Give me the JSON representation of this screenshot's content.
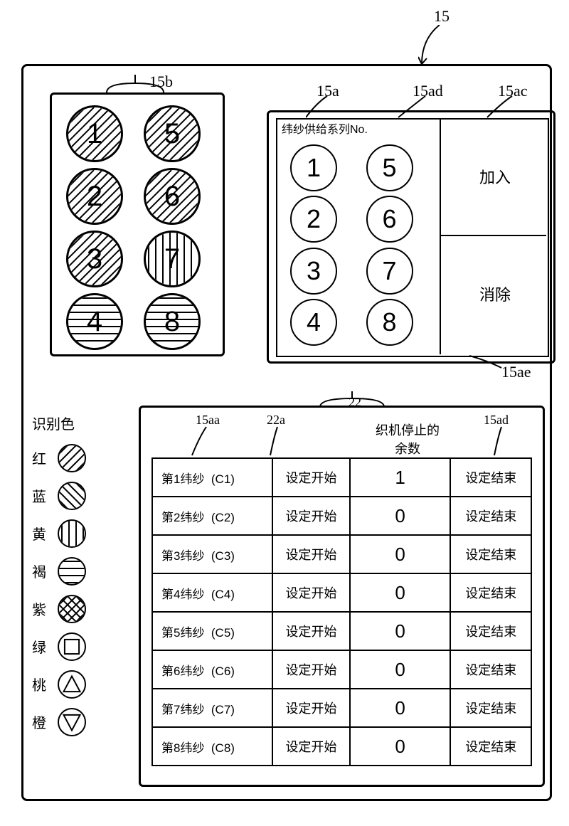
{
  "refs": {
    "r15": "15",
    "r15b": "15b",
    "r15a": "15a",
    "r15ad_top": "15ad",
    "r15ac": "15ac",
    "r15ae": "15ae",
    "r22": "22",
    "r15aa": "15aa",
    "r22a": "22a",
    "r15ad_right": "15ad"
  },
  "panel15a": {
    "title": "纬纱供给系列No.",
    "add": "加入",
    "del": "消除",
    "nums": [
      "1",
      "5",
      "2",
      "6",
      "3",
      "7",
      "4",
      "8"
    ]
  },
  "panel15b": {
    "nums": [
      "1",
      "5",
      "2",
      "6",
      "3",
      "7",
      "4",
      "8"
    ],
    "hatch": [
      "diag45",
      "diag45",
      "diag45",
      "diag45",
      "diag45",
      "vert",
      "horiz",
      "horiz"
    ]
  },
  "table": {
    "title": "织机停止的\n余数",
    "cols": {
      "start": "设定开始",
      "end": "设定结束"
    },
    "rows": [
      {
        "name": "第1纬纱",
        "code": "(C1)",
        "val": "1"
      },
      {
        "name": "第2纬纱",
        "code": "(C2)",
        "val": "0"
      },
      {
        "name": "第3纬纱",
        "code": "(C3)",
        "val": "0"
      },
      {
        "name": "第4纬纱",
        "code": "(C4)",
        "val": "0"
      },
      {
        "name": "第5纬纱",
        "code": "(C5)",
        "val": "0"
      },
      {
        "name": "第6纬纱",
        "code": "(C6)",
        "val": "0"
      },
      {
        "name": "第7纬纱",
        "code": "(C7)",
        "val": "0"
      },
      {
        "name": "第8纬纱",
        "code": "(C8)",
        "val": "0"
      }
    ]
  },
  "legend": {
    "title": "识别色",
    "items": [
      {
        "label": "红",
        "icon": "diag45"
      },
      {
        "label": "蓝",
        "icon": "diag135"
      },
      {
        "label": "黄",
        "icon": "vert"
      },
      {
        "label": "褐",
        "icon": "horiz"
      },
      {
        "label": "紫",
        "icon": "cross"
      },
      {
        "label": "绿",
        "icon": "square"
      },
      {
        "label": "桃",
        "icon": "tri-up"
      },
      {
        "label": "橙",
        "icon": "tri-down"
      }
    ]
  },
  "colors": {
    "stroke": "#000000",
    "bg": "#ffffff"
  }
}
